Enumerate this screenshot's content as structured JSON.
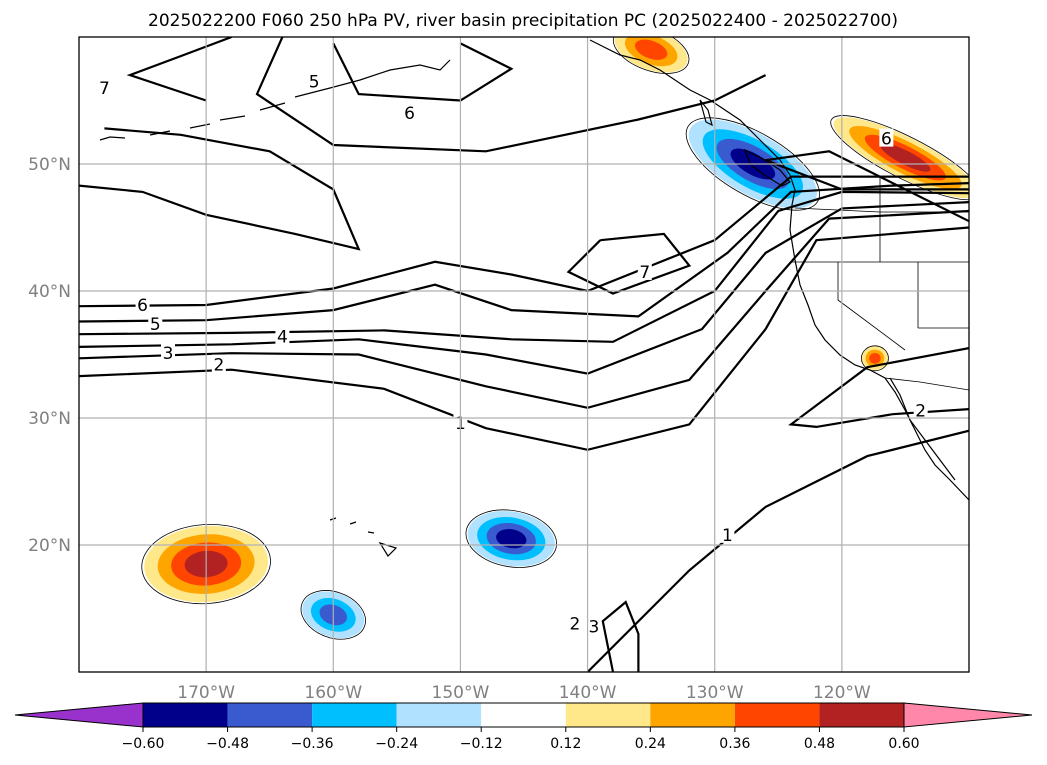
{
  "chart_data": {
    "type": "contour-map",
    "title": "2025022200 F060 250 hPa PV, river basin precipitation PC (2025022400 - 2025022700)",
    "projection": "PlateCarree",
    "xlim": [
      -180,
      -110
    ],
    "ylim": [
      10,
      60
    ],
    "grid": true,
    "x_ticks": [
      {
        "value": -170,
        "label": "170°W"
      },
      {
        "value": -160,
        "label": "160°W"
      },
      {
        "value": -150,
        "label": "150°W"
      },
      {
        "value": -140,
        "label": "140°W"
      },
      {
        "value": -130,
        "label": "130°W"
      },
      {
        "value": -120,
        "label": "120°W"
      }
    ],
    "y_ticks": [
      {
        "value": 20,
        "label": "20°N"
      },
      {
        "value": 30,
        "label": "30°N"
      },
      {
        "value": 40,
        "label": "40°N"
      },
      {
        "value": 50,
        "label": "50°N"
      }
    ],
    "colorbar": {
      "orientation": "horizontal",
      "extend": "both",
      "bounds": [
        -0.6,
        -0.48,
        -0.36,
        -0.24,
        -0.12,
        0.12,
        0.24,
        0.36,
        0.48,
        0.6
      ],
      "tick_labels": [
        "−0.60",
        "−0.48",
        "−0.36",
        "−0.24",
        "−0.12",
        "0.12",
        "0.24",
        "0.36",
        "0.48",
        "0.60"
      ],
      "colors": [
        "#9932cc",
        "#00008b",
        "#3a5bd0",
        "#00bfff",
        "#b0e2ff",
        "#ffffff",
        "#ffe88a",
        "#ffa500",
        "#ff4500",
        "#b22222",
        "#ff88aa"
      ]
    },
    "pv_contour_labels": [
      {
        "text": "7",
        "lon": -178,
        "lat": 56
      },
      {
        "text": "5",
        "lon": -161.5,
        "lat": 56.5
      },
      {
        "text": "6",
        "lon": -154,
        "lat": 54
      },
      {
        "text": "7",
        "lon": -135.5,
        "lat": 41.5
      },
      {
        "text": "6",
        "lon": -175,
        "lat": 38.9
      },
      {
        "text": "5",
        "lon": -174,
        "lat": 37.4
      },
      {
        "text": "4",
        "lon": -164,
        "lat": 36.4
      },
      {
        "text": "3",
        "lon": -173,
        "lat": 35.1
      },
      {
        "text": "2",
        "lon": -169,
        "lat": 34.2
      },
      {
        "text": "1",
        "lon": -150,
        "lat": 29.6
      },
      {
        "text": "1",
        "lon": -129,
        "lat": 20.8
      },
      {
        "text": "2",
        "lon": -141,
        "lat": 13.8
      },
      {
        "text": "3",
        "lon": -139.5,
        "lat": 13.6
      },
      {
        "text": "6",
        "lon": -116.5,
        "lat": 52
      },
      {
        "text": "2",
        "lon": -113.8,
        "lat": 30.6
      }
    ],
    "pc_features": [
      {
        "name": "central north pacific positive",
        "category": "positive",
        "max_level": 0.48,
        "center": [
          -170,
          18.5
        ]
      },
      {
        "name": "northeast pacific negative",
        "category": "negative",
        "max_level": -0.48,
        "center": [
          -127,
          50
        ]
      },
      {
        "name": "gulf of alaska positive",
        "category": "positive",
        "max_level": 0.36,
        "center": [
          -135,
          59
        ]
      },
      {
        "name": "interior northwest positive",
        "category": "positive",
        "max_level": 0.48,
        "center": [
          -115,
          50.5
        ]
      },
      {
        "name": "subtropical negative",
        "category": "negative",
        "max_level": -0.48,
        "center": [
          -146,
          20.5
        ]
      },
      {
        "name": "south negative",
        "category": "negative",
        "max_level": -0.36,
        "center": [
          -160,
          14.5
        ]
      },
      {
        "name": "southern california positive",
        "category": "positive",
        "max_level": 0.36,
        "center": [
          -117.4,
          34.7
        ]
      }
    ]
  }
}
